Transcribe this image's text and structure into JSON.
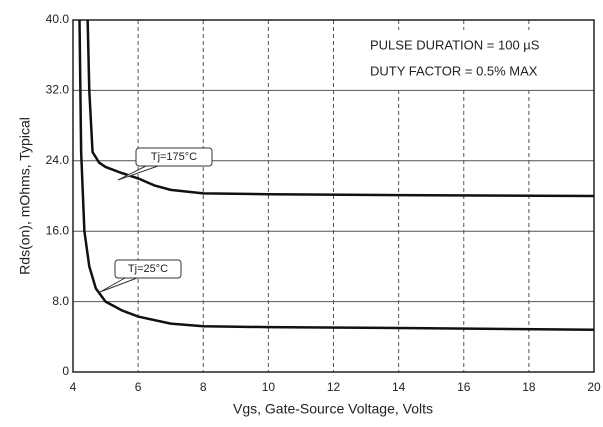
{
  "chart_data": {
    "type": "line",
    "x_label": "Vgs, Gate-Source Voltage, Volts",
    "y_label": "Rds(on), mOhms, Typical",
    "annotations": [
      "PULSE DURATION = 100 µS",
      "DUTY FACTOR = 0.5% MAX",
      "Tj=175°C",
      "Tj=25°C"
    ],
    "xlim": [
      4,
      20
    ],
    "xticks": [
      4,
      6,
      8,
      10,
      12,
      14,
      16,
      18,
      20
    ],
    "ylim": [
      0,
      40
    ],
    "yticks": [
      0,
      {
        "value": 8,
        "label": "8.0"
      },
      {
        "value": 16,
        "label": "16.0"
      },
      {
        "value": 24,
        "label": "24.0"
      },
      {
        "value": 32,
        "label": "32.0"
      },
      {
        "value": 40,
        "label": "40.0"
      }
    ],
    "grid": true,
    "series": [
      {
        "color": "#111111",
        "x": [
          4.45,
          4.5,
          4.6,
          4.8,
          5,
          5.5,
          6,
          6.5,
          7,
          8,
          10,
          14,
          20
        ],
        "values": [
          40,
          32,
          25,
          23.8,
          23.3,
          22.6,
          22,
          21.2,
          20.7,
          20.3,
          20.2,
          20.1,
          20.0
        ]
      },
      {
        "color": "#111111",
        "x": [
          4.2,
          4.25,
          4.35,
          4.5,
          4.7,
          5,
          5.5,
          6,
          7,
          8,
          10,
          14,
          20
        ],
        "values": [
          40,
          25,
          16,
          12,
          9.5,
          8,
          7,
          6.3,
          5.5,
          5.2,
          5.1,
          5.0,
          4.8
        ]
      }
    ]
  }
}
